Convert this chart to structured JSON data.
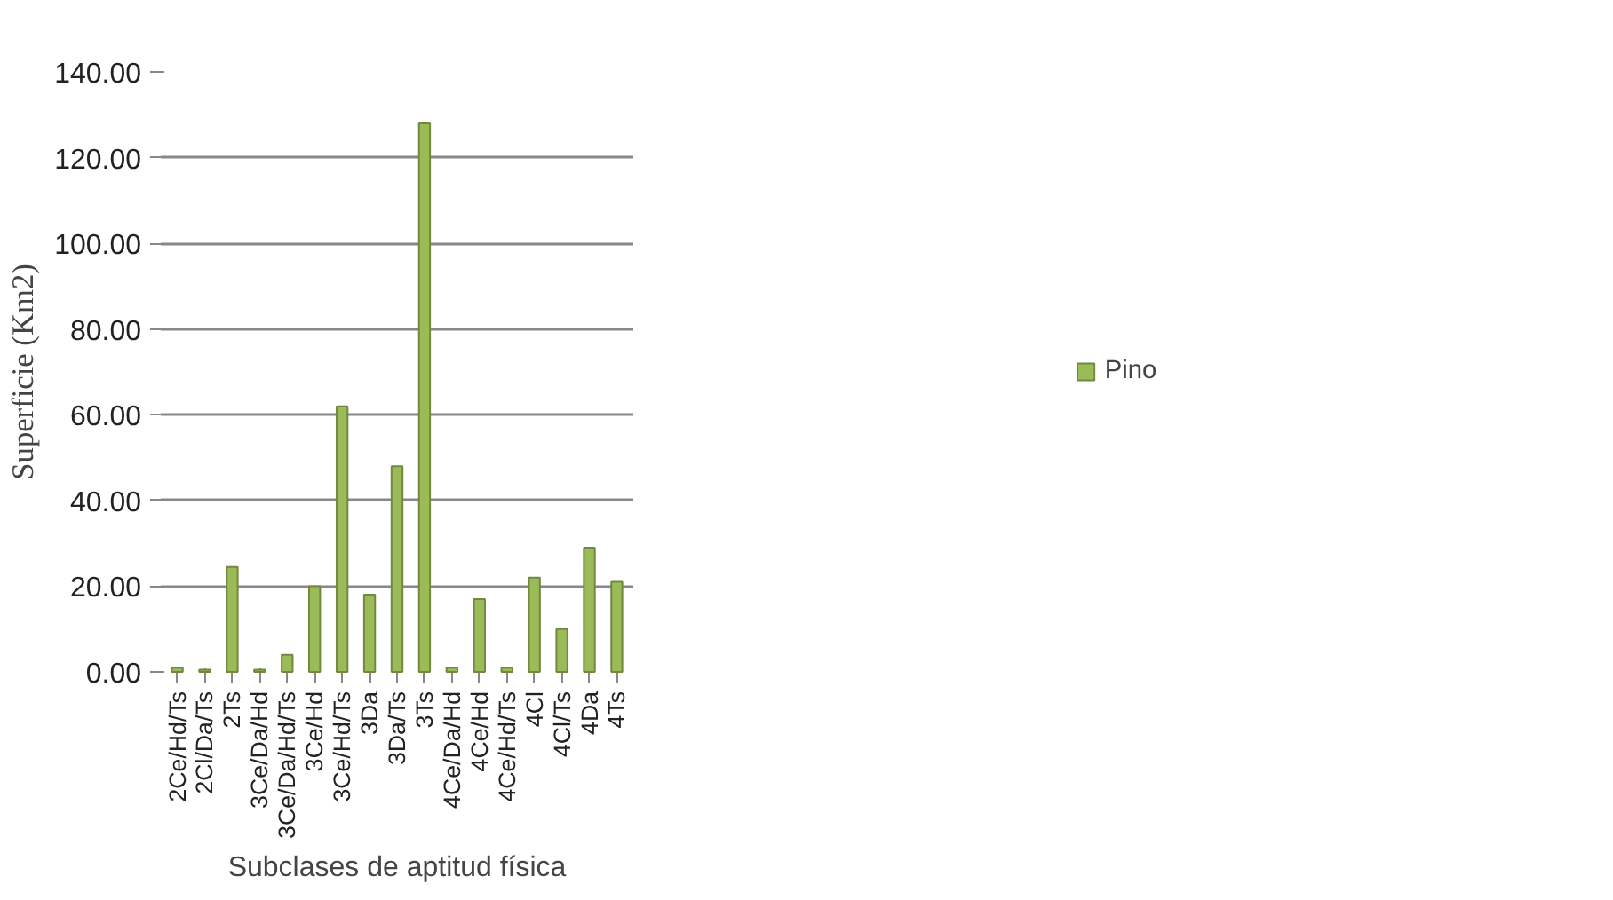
{
  "chart_data": {
    "type": "bar",
    "xlabel": "Subclases de aptitud física",
    "ylabel": "Superficie (Km2)",
    "categories": [
      "2Ce/Hd/Ts",
      "2Cl/Da/Ts",
      "2Ts",
      "3Ce/Da/Hd",
      "3Ce/Da/Hd/Ts",
      "3Ce/Hd",
      "3Ce/Hd/Ts",
      "3Da",
      "3Da/Ts",
      "3Ts",
      "4Ce/Da/Hd",
      "4Ce/Hd",
      "4Ce/Hd/Ts",
      "4Cl",
      "4Cl/Ts",
      "4Da",
      "4Ts"
    ],
    "series": [
      {
        "name": "Pino",
        "color": "#9bbb59",
        "values": [
          1,
          0.5,
          24.5,
          0.5,
          4,
          20,
          62,
          18,
          48,
          128,
          1,
          17,
          1,
          22,
          10,
          29,
          21
        ]
      }
    ],
    "ylim": [
      0,
      140
    ],
    "yticks": [
      {
        "value": 0,
        "label": "0.00"
      },
      {
        "value": 20,
        "label": "20.00"
      },
      {
        "value": 40,
        "label": "40.00"
      },
      {
        "value": 60,
        "label": "60.00"
      },
      {
        "value": 80,
        "label": "80.00"
      },
      {
        "value": 100,
        "label": "100.00"
      },
      {
        "value": 120,
        "label": "120.00"
      },
      {
        "value": 140,
        "label": "140.00"
      }
    ],
    "grid": "y",
    "legend": "right"
  }
}
